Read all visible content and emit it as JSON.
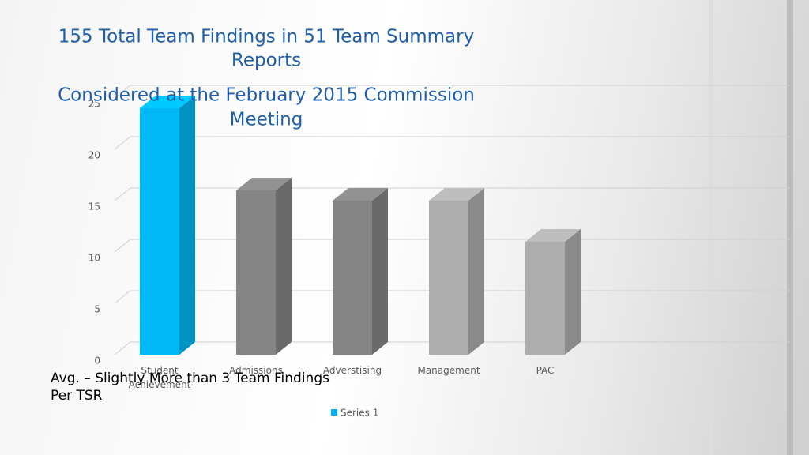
{
  "chart_data": {
    "type": "bar3d",
    "title": "155 Total Team Findings in 51 Team Summary",
    "title_line2": "Reports",
    "subtitle": "Considered at the February 2015 Commission",
    "subtitle_line2": "Meeting",
    "annotation": "Avg. – Slightly More than 3 Team Findings",
    "annotation_line2": "Per TSR",
    "categories": [
      "Student Achievement",
      "Admissions",
      "Adverstising",
      "Management",
      "PAC"
    ],
    "series": [
      {
        "name": "Series 1",
        "color": "#00b0f0",
        "values": [
          24,
          16,
          15,
          15,
          11
        ],
        "colors": [
          "#00b8f5",
          "#858585",
          "#858585",
          "#adadad",
          "#adadad"
        ]
      }
    ],
    "ylim": [
      0,
      25
    ],
    "yticks": [
      0,
      5,
      10,
      15,
      20,
      25
    ],
    "grid": true
  }
}
